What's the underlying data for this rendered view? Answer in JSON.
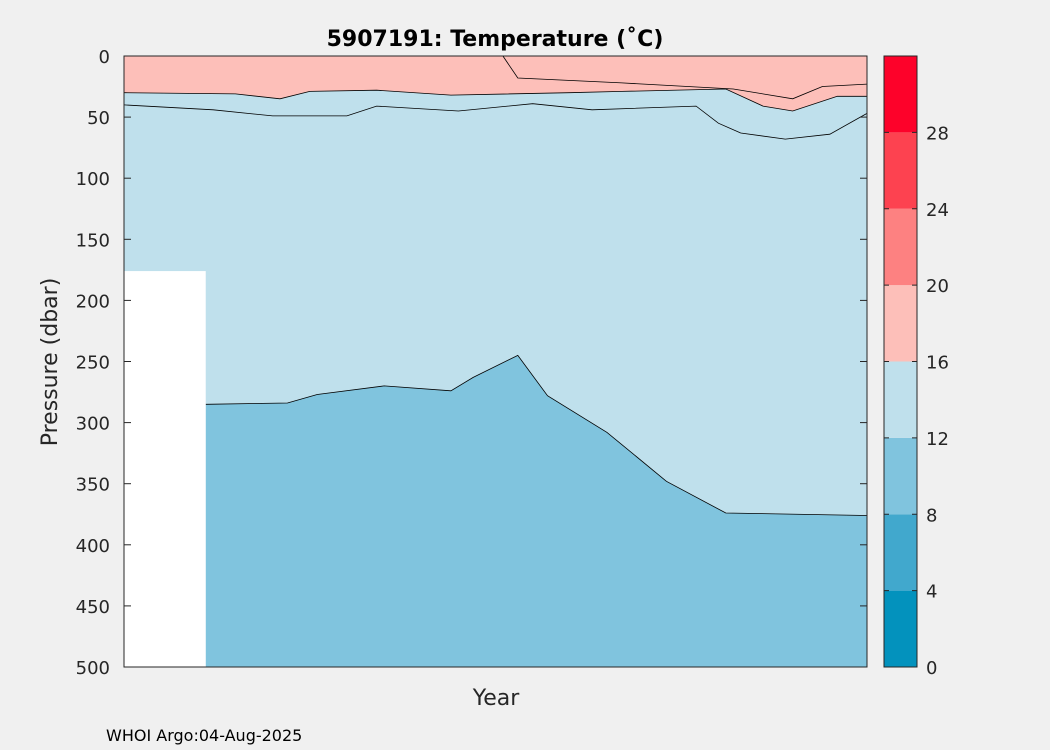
{
  "chart_data": {
    "type": "filled-contour",
    "title": "5907191:  Temperature (˚C)",
    "xlabel": "Year",
    "ylabel": "Pressure (dbar)",
    "xlim": [
      0,
      1
    ],
    "ylim": [
      0,
      500
    ],
    "y_inverted": true,
    "yticks": [
      0,
      50,
      100,
      150,
      200,
      250,
      300,
      350,
      400,
      450,
      500
    ],
    "xticks": [],
    "no_data_region": {
      "x_range": [
        0.0,
        0.11
      ],
      "pressure_top": 176,
      "pressure_bottom": 500
    },
    "colorbar": {
      "levels": [
        0,
        4,
        8,
        12,
        16,
        20,
        24,
        28,
        32
      ],
      "tick_labels": [
        "0",
        "4",
        "8",
        "12",
        "16",
        "20",
        "24",
        "28"
      ],
      "colors": [
        "#0392bd",
        "#41a8cd",
        "#80c4de",
        "#bfe0ec",
        "#fdbfb9",
        "#fd8181",
        "#fd4250",
        "#fd022a"
      ]
    },
    "bands": [
      {
        "name": "8-12 °C",
        "color": "#80c4de",
        "top_boundary": [
          [
            0.11,
            285
          ],
          [
            0.22,
            284
          ],
          [
            0.26,
            277
          ],
          [
            0.35,
            270
          ],
          [
            0.44,
            274
          ],
          [
            0.47,
            263
          ],
          [
            0.53,
            245
          ],
          [
            0.57,
            278
          ],
          [
            0.65,
            308
          ],
          [
            0.73,
            348
          ],
          [
            0.81,
            374
          ],
          [
            1.0,
            376
          ]
        ],
        "bottom": 500
      },
      {
        "name": "12-16 °C",
        "color": "#bfe0ec",
        "top_boundary": [
          [
            0.0,
            40
          ],
          [
            0.12,
            44
          ],
          [
            0.2,
            49
          ],
          [
            0.3,
            49
          ],
          [
            0.34,
            41
          ],
          [
            0.45,
            45
          ],
          [
            0.55,
            39
          ],
          [
            0.63,
            44
          ],
          [
            0.77,
            41
          ],
          [
            0.8,
            55
          ],
          [
            0.83,
            63
          ],
          [
            0.89,
            68
          ],
          [
            0.95,
            64
          ],
          [
            1.0,
            47
          ]
        ],
        "bottom_boundary": "8-12 °C top_boundary"
      },
      {
        "name": "16-20 °C (surface)",
        "color": "#fdbfb9",
        "bottom_boundary": [
          [
            0.0,
            30
          ],
          [
            0.15,
            31
          ],
          [
            0.21,
            35
          ],
          [
            0.25,
            29
          ],
          [
            0.34,
            28
          ],
          [
            0.44,
            32
          ],
          [
            0.6,
            30
          ],
          [
            0.67,
            29
          ],
          [
            0.81,
            27
          ],
          [
            0.86,
            41
          ],
          [
            0.9,
            45
          ],
          [
            0.96,
            33
          ],
          [
            1.0,
            33
          ]
        ],
        "secondary_contour": [
          [
            0.51,
            0
          ],
          [
            0.53,
            18
          ],
          [
            0.67,
            22
          ],
          [
            0.82,
            27
          ],
          [
            0.9,
            35
          ],
          [
            0.94,
            25
          ],
          [
            1.0,
            23
          ]
        ]
      }
    ]
  },
  "footer": {
    "credit": "WHOI Argo:04-Aug-2025"
  }
}
